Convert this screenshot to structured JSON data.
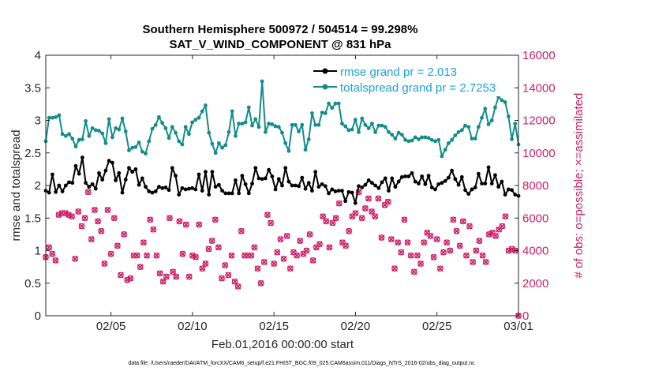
{
  "chart_data": {
    "type": "line",
    "title_line1": "Southern Hemisphere 500972 / 504514 = 99.298%",
    "title_line2": "SAT_V_WIND_COMPONENT @ 831 hPa",
    "xlabel": "Feb.01,2016 00:00:00 start",
    "ylabel_left": "rmse and totalspread",
    "ylabel_right": "# of obs: o=possible; ×=assimilated",
    "footnote": "data file: /Users/raeder/DAI/ATM_forcXX/CAM6_setup/f.e21.FHIST_BGC.f09_025.CAM6assim.011/Diags_NTrS_2016-02/obs_diag_output.nc",
    "x_ticks": [
      "02/05",
      "02/10",
      "02/15",
      "02/20",
      "02/25",
      "03/01"
    ],
    "x_tick_days": [
      4,
      9,
      14,
      19,
      24,
      29
    ],
    "x_range_days": [
      0,
      29
    ],
    "ylim_left": [
      0,
      4
    ],
    "yticks_left": [
      "0",
      "0.5",
      "1",
      "1.5",
      "2",
      "2.5",
      "3",
      "3.5",
      "4"
    ],
    "ylim_right": [
      0,
      16000
    ],
    "yticks_right": [
      "0",
      "2000",
      "4000",
      "6000",
      "8000",
      "10000",
      "12000",
      "14000",
      "16000"
    ],
    "grid": false,
    "legend_position": "top-right",
    "colors": {
      "rmse": "#000000",
      "totalspread": "#138c8c",
      "obs": "#cc1f66",
      "legend_text": "#1aa3d9",
      "right_axis": "#cc1f66"
    },
    "series": [
      {
        "name": "rmse grand pr = 2.013",
        "axis": "left",
        "values": [
          1.92,
          1.89,
          2.17,
          1.9,
          2.0,
          1.91,
          2.0,
          2.05,
          2.04,
          2.3,
          2.18,
          2.43,
          2.04,
          1.98,
          2.02,
          1.95,
          2.19,
          2.09,
          2.23,
          2.38,
          2.35,
          2.08,
          2.19,
          1.89,
          2.09,
          2.27,
          2.21,
          2.25,
          2.01,
          2.11,
          1.98,
          1.91,
          1.89,
          1.91,
          1.98,
          1.96,
          1.97,
          1.93,
          2.27,
          2.15,
          1.86,
          1.96,
          1.94,
          1.95,
          1.96,
          1.94,
          2.17,
          1.92,
          2.21,
          1.86,
          2.21,
          1.98,
          2.01,
          1.92,
          1.88,
          1.88,
          1.88,
          2.08,
          1.88,
          2.15,
          2.02,
          1.88,
          2.03,
          2.27,
          2.11,
          2.1,
          2.11,
          2.24,
          2.14,
          1.94,
          2.1,
          2.0,
          2.27,
          2.06,
          2.0,
          2.0,
          1.99,
          2.12,
          1.95,
          2.04,
          1.92,
          2.21,
          1.98,
          2.02,
          1.99,
          1.88,
          1.94,
          1.91,
          1.92,
          1.92,
          1.76,
          1.9,
          1.89,
          1.73,
          1.99,
          1.97,
          2.01,
          2.08,
          2.04,
          2.0,
          1.96,
          2.05,
          2.11,
          1.92,
          2.11,
          1.98,
          2.06,
          2.13,
          2.14,
          2.14,
          2.19,
          2.06,
          2.03,
          2.14,
          2.02,
          2.15,
          1.97,
          1.94,
          2.02,
          2.04,
          2.07,
          2.12,
          2.23,
          2.1,
          2.01,
          2.13,
          1.93,
          1.87,
          1.94,
          1.97,
          2.18,
          2.03,
          2.03,
          2.28,
          2.03,
          2.16,
          1.98,
          2.06,
          1.86,
          1.94,
          1.93,
          1.86,
          1.84
        ]
      },
      {
        "name": "totalspread grand pr = 2.7253",
        "axis": "left",
        "values": [
          2.68,
          3.04,
          3.04,
          3.05,
          3.08,
          2.79,
          2.76,
          2.79,
          2.72,
          2.6,
          2.7,
          2.71,
          2.99,
          2.76,
          2.88,
          2.85,
          2.84,
          2.8,
          2.65,
          3.02,
          2.74,
          2.88,
          2.86,
          3.03,
          2.83,
          2.54,
          2.58,
          2.59,
          2.66,
          2.52,
          2.49,
          2.68,
          2.87,
          2.93,
          3.05,
          2.96,
          2.88,
          2.73,
          2.9,
          2.81,
          2.68,
          2.63,
          2.9,
          2.79,
          2.97,
          3.01,
          3.04,
          3.14,
          3.23,
          2.81,
          2.64,
          2.5,
          2.65,
          2.58,
          2.62,
          2.82,
          3.14,
          2.76,
          2.95,
          2.95,
          2.97,
          3.2,
          2.92,
          3.02,
          2.9,
          3.6,
          2.82,
          2.95,
          2.94,
          2.91,
          2.9,
          2.81,
          2.65,
          2.53,
          2.93,
          2.93,
          2.83,
          2.93,
          2.55,
          2.71,
          3.11,
          2.93,
          2.93,
          3.12,
          3.11,
          3.26,
          3.19,
          3.26,
          3.26,
          2.95,
          2.91,
          2.85,
          2.86,
          3.01,
          2.82,
          3.03,
          2.93,
          2.88,
          2.95,
          2.82,
          2.92,
          2.92,
          2.9,
          2.82,
          2.78,
          2.72,
          2.81,
          2.78,
          2.7,
          2.68,
          2.69,
          2.74,
          2.71,
          2.74,
          2.74,
          2.73,
          2.7,
          2.68,
          2.7,
          2.45,
          2.55,
          2.65,
          2.7,
          2.77,
          2.82,
          2.85,
          2.92,
          2.9,
          2.72,
          2.72,
          2.9,
          3.04,
          3.18,
          2.94,
          3.0,
          3.2,
          3.36,
          3.31,
          3.28,
          3.06,
          2.71,
          2.95,
          2.63
        ]
      },
      {
        "name": "# of obs (possible / assimilated)",
        "axis": "right",
        "type": "scatter",
        "values": [
          3600,
          4200,
          3800,
          3400,
          6200,
          6300,
          6300,
          6200,
          6100,
          3500,
          6400,
          5500,
          6000,
          7600,
          4700,
          6500,
          5800,
          5200,
          3200,
          6500,
          3800,
          6000,
          4300,
          2500,
          5000,
          2200,
          2300,
          3700,
          3700,
          3000,
          4500,
          3700,
          5900,
          5300,
          3700,
          2600,
          2100,
          2400,
          6000,
          2700,
          2400,
          5800,
          3800,
          5600,
          2400,
          3700,
          3600,
          5600,
          2900,
          3200,
          4100,
          4600,
          5900,
          4200,
          2300,
          3100,
          2500,
          3700,
          2100,
          1800,
          5200,
          3700,
          3700,
          3700,
          4200,
          2900,
          2000,
          3300,
          6200,
          5700,
          3200,
          3900,
          4700,
          3500,
          4900,
          2900,
          3900,
          3700,
          4600,
          3800,
          4000,
          5000,
          3400,
          4200,
          4400,
          6100,
          5800,
          4200,
          5700,
          6000,
          6900,
          4500,
          4300,
          5200,
          6100,
          6300,
          7600,
          6000,
          6600,
          7200,
          6400,
          6100,
          7200,
          4800,
          6800,
          7000,
          4700,
          2900,
          4500,
          3900,
          5900,
          4500,
          3700,
          2700,
          3700,
          3200,
          4500,
          5100,
          4900,
          3600,
          4700,
          2900,
          3900,
          4500,
          4000,
          5900,
          5200,
          4300,
          5800,
          3700,
          5500,
          3300,
          4000,
          4600,
          3700,
          3300,
          5000,
          5100,
          4900,
          5300,
          5500,
          6100,
          4000,
          4100,
          4000,
          0
        ]
      }
    ]
  }
}
